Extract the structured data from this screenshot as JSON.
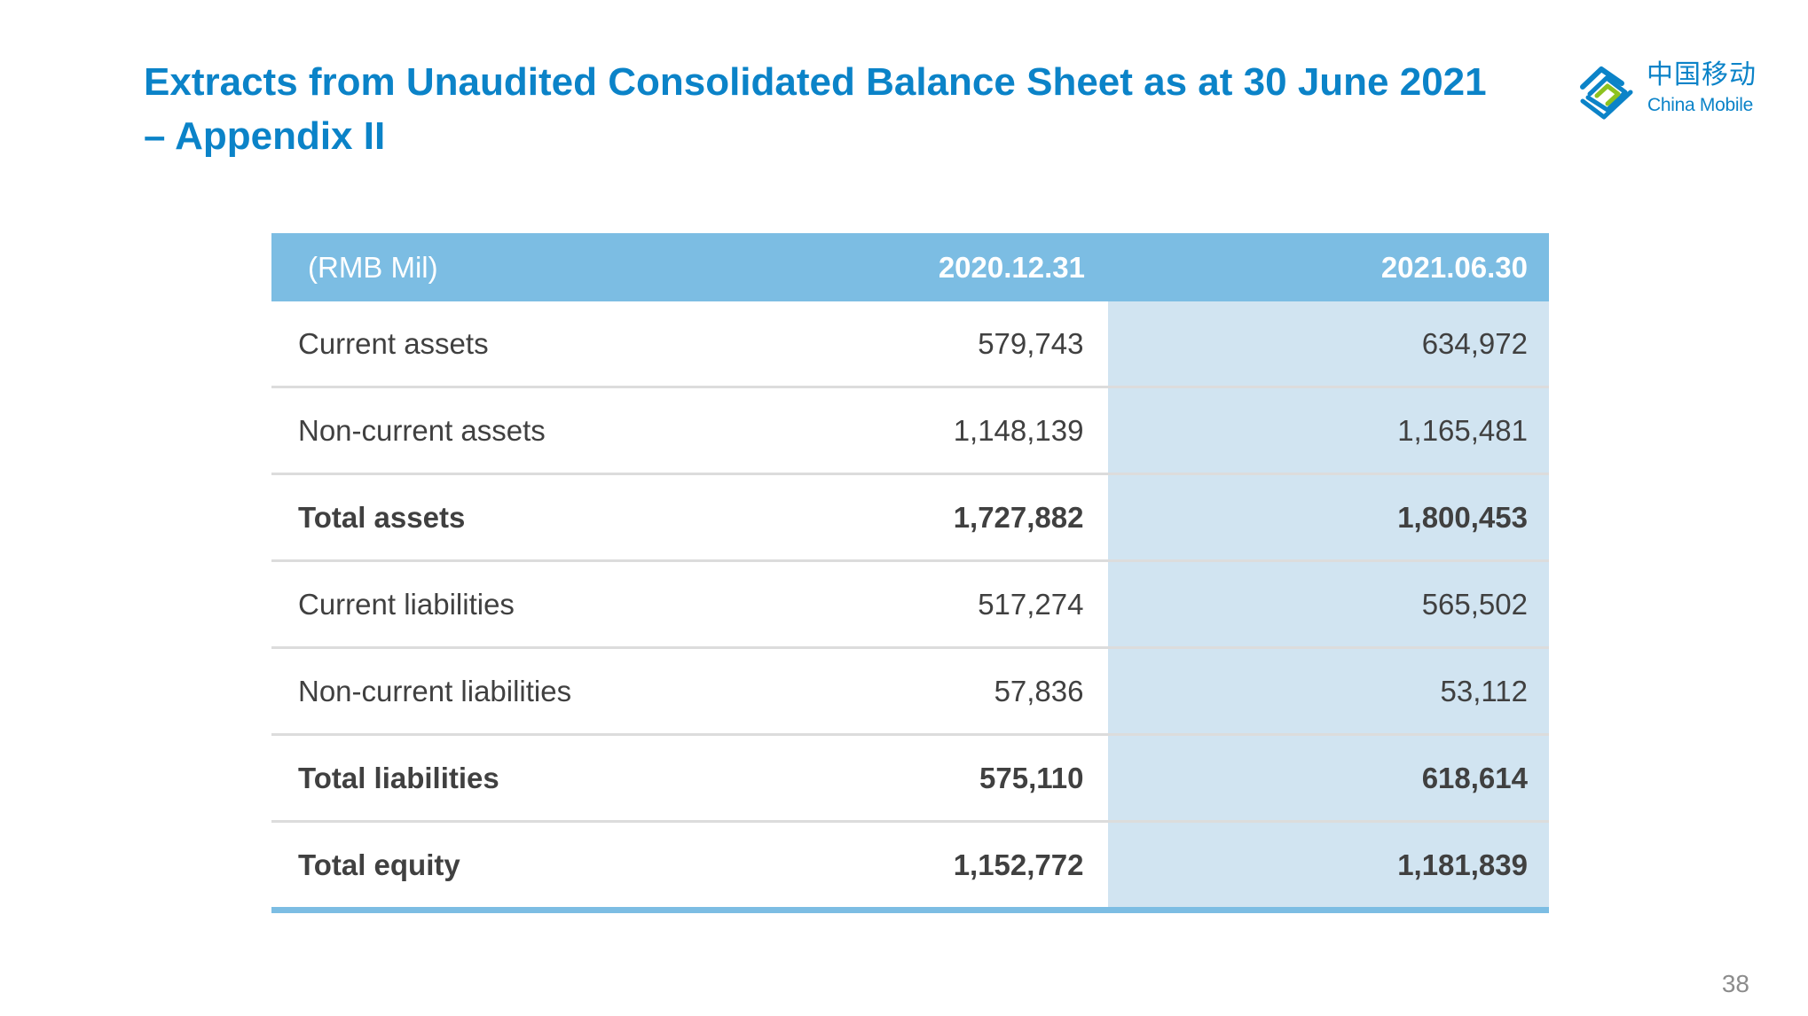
{
  "title": {
    "line1": "Extracts from Unaudited Consolidated Balance Sheet as at 30 June 2021",
    "line2": "– Appendix II"
  },
  "logo": {
    "icon": "china-mobile-logo-icon",
    "name_cn": "中国移动",
    "name_en": "China Mobile"
  },
  "table": {
    "headers": [
      "(RMB Mil)",
      "2020.12.31",
      "2021.06.30"
    ],
    "rows": [
      {
        "label": "Current assets",
        "v2020": "579,743",
        "v2021": "634,972",
        "total": false
      },
      {
        "label": "Non-current assets",
        "v2020": "1,148,139",
        "v2021": "1,165,481",
        "total": false
      },
      {
        "label": "Total assets",
        "v2020": "1,727,882",
        "v2021": "1,800,453",
        "total": true
      },
      {
        "label": "Current liabilities",
        "v2020": "517,274",
        "v2021": "565,502",
        "total": false
      },
      {
        "label": "Non-current liabilities",
        "v2020": "57,836",
        "v2021": "53,112",
        "total": false
      },
      {
        "label": "Total liabilities",
        "v2020": "575,110",
        "v2021": "618,614",
        "total": true
      },
      {
        "label": "Total equity",
        "v2020": "1,152,772",
        "v2021": "1,181,839",
        "total": true
      }
    ]
  },
  "page_number": "38",
  "colors": {
    "title": "#0b83c8",
    "header_bg": "#7cbde3",
    "highlight_column": "#d1e4f1",
    "text": "#404040",
    "logo_green": "#8dc21f"
  }
}
